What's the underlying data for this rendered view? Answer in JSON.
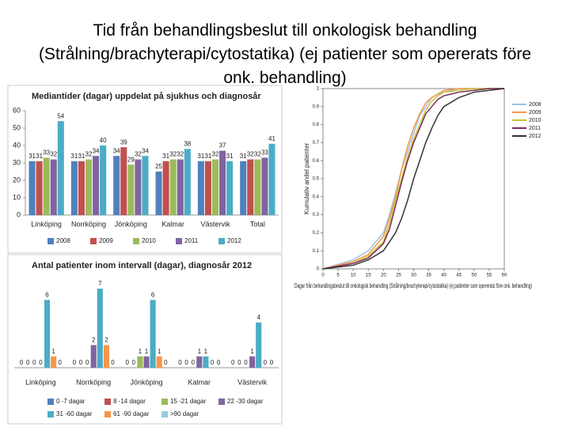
{
  "title": "Tid från behandlingsbeslut till onkologisk behandling (Strålning/brachyterapi/cytostatika) (ej patienter som opererats före onk. behandling)",
  "chart_data": [
    {
      "type": "bar",
      "title": "Mediantider (dagar) uppdelat på sjukhus och diagnosår",
      "categories": [
        "Linköping",
        "Norrköping",
        "Jönköping",
        "Kalmar",
        "Västervik",
        "Total"
      ],
      "series": [
        {
          "name": "2008",
          "color": "#4f81bd",
          "values": [
            31,
            31,
            34,
            25,
            31,
            31
          ]
        },
        {
          "name": "2009",
          "color": "#c0504d",
          "values": [
            31,
            31,
            39,
            31,
            31,
            32
          ]
        },
        {
          "name": "2010",
          "color": "#9bbb59",
          "values": [
            33,
            32,
            29,
            32,
            32,
            32
          ]
        },
        {
          "name": "2011",
          "color": "#8064a2",
          "values": [
            32,
            34,
            32,
            32,
            37,
            33
          ]
        },
        {
          "name": "2012",
          "color": "#4bacc6",
          "values": [
            54,
            40,
            34,
            38,
            31,
            41
          ]
        }
      ],
      "ylim": [
        0,
        60
      ],
      "yticks": [
        0,
        10,
        20,
        30,
        40,
        50,
        60
      ]
    },
    {
      "type": "bar",
      "title": "Antal patienter inom intervall (dagar), diagnosår 2012",
      "categories": [
        "Linköping",
        "Norrköping",
        "Jönköping",
        "Kalmar",
        "Västervik"
      ],
      "series": [
        {
          "name": "0 -7 dagar",
          "color": "#4f81bd",
          "values": [
            0,
            0,
            0,
            0,
            0
          ]
        },
        {
          "name": "8 -14 dagar",
          "color": "#c0504d",
          "values": [
            0,
            0,
            0,
            0,
            0
          ]
        },
        {
          "name": "15 -21 dagar",
          "color": "#9bbb59",
          "values": [
            0,
            0,
            1,
            0,
            0
          ]
        },
        {
          "name": "22 -30 dagar",
          "color": "#8064a2",
          "values": [
            0,
            2,
            1,
            1,
            1
          ]
        },
        {
          "name": "31 -60 dagar",
          "color": "#4bacc6",
          "values": [
            6,
            7,
            6,
            1,
            4
          ]
        },
        {
          "name": "61 -90 dagar",
          "color": "#f79646",
          "values": [
            1,
            2,
            1,
            0,
            0
          ]
        },
        {
          "name": ">90 dagar",
          "color": "#93cddd",
          "values": [
            0,
            0,
            0,
            0,
            0
          ]
        }
      ]
    },
    {
      "type": "line",
      "x_label": "Dagar från behandlingsbeslut till onkologisk behandling (Strålning/brachyterapi/cytostatika) (ej patienter som opererats före onk. behandling)",
      "y_label": "Kumulativ andel patienter",
      "x": [
        0,
        10,
        15,
        20,
        22,
        24,
        26,
        28,
        30,
        32,
        34,
        36,
        38,
        40,
        45,
        50,
        55,
        60
      ],
      "series": [
        {
          "name": "2008",
          "color": "#9dc3e6",
          "values": [
            0,
            0.05,
            0.1,
            0.2,
            0.3,
            0.42,
            0.55,
            0.65,
            0.75,
            0.85,
            0.9,
            0.95,
            0.97,
            0.98,
            1,
            1,
            1,
            1
          ]
        },
        {
          "name": "2009",
          "color": "#f79646",
          "values": [
            0,
            0.04,
            0.08,
            0.18,
            0.28,
            0.4,
            0.55,
            0.68,
            0.78,
            0.86,
            0.92,
            0.95,
            0.97,
            0.99,
            1,
            1,
            1,
            1
          ]
        },
        {
          "name": "2010",
          "color": "#c4c43a",
          "values": [
            0,
            0.03,
            0.07,
            0.15,
            0.25,
            0.38,
            0.5,
            0.62,
            0.72,
            0.8,
            0.88,
            0.93,
            0.96,
            0.98,
            0.99,
            1,
            1,
            1
          ]
        },
        {
          "name": "2011",
          "color": "#7b2c5e",
          "values": [
            0,
            0.03,
            0.06,
            0.14,
            0.22,
            0.35,
            0.48,
            0.6,
            0.7,
            0.78,
            0.86,
            0.9,
            0.94,
            0.96,
            0.98,
            0.99,
            1,
            1
          ]
        },
        {
          "name": "2012",
          "color": "#333333",
          "values": [
            0,
            0.02,
            0.05,
            0.1,
            0.15,
            0.2,
            0.28,
            0.38,
            0.5,
            0.6,
            0.7,
            0.78,
            0.85,
            0.9,
            0.95,
            0.98,
            0.99,
            1
          ]
        }
      ],
      "xlim": [
        0,
        60
      ],
      "xticks": [
        0,
        5,
        10,
        15,
        20,
        25,
        30,
        35,
        40,
        45,
        50,
        55,
        60
      ],
      "ylim": [
        0,
        1
      ],
      "yticks": [
        0,
        0.1,
        0.2,
        0.3,
        0.4,
        0.5,
        0.6,
        0.7,
        0.8,
        0.9,
        1
      ]
    }
  ]
}
